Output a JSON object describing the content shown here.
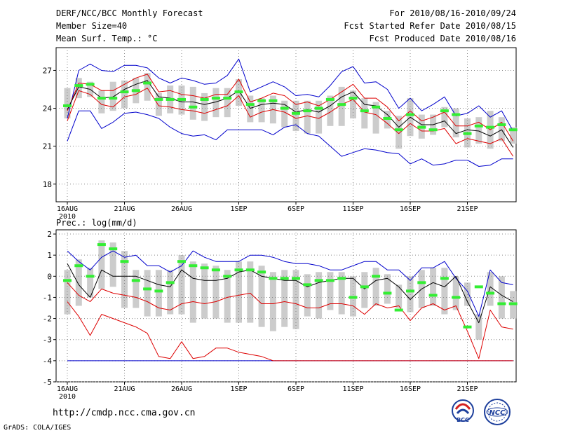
{
  "header": {
    "title": "DERF/NCC/BCC Monthly Forecast",
    "member_size": "Member Size=40",
    "variable": "Mean Surf. Temp.: °C",
    "for_period": "For 2010/08/16-2010/09/24",
    "fcst_started": "Fcst Started Refer Date 2010/08/15",
    "fcst_produced": "Fcst Produced Date 2010/08/16"
  },
  "footer": {
    "url": "http://cmdp.ncc.cma.gov.cn",
    "grads": "GrADS: COLA/IGES",
    "logo1_text": "BCC",
    "logo2_text": "NCC"
  },
  "colors": {
    "envelope": "#0000cc",
    "spread": "#dd0000",
    "mean": "#000000",
    "median": "#33ee33",
    "box": "#cccccc",
    "grid": "#888888"
  },
  "chart_data": [
    {
      "type": "box-ensemble",
      "title": "Mean Surf. Temp.: °C",
      "ylim": [
        16.6,
        28.8
      ],
      "yticks": [
        18,
        21,
        24,
        27
      ],
      "xtick_labels": [
        "16AUG",
        "21AUG",
        "26AUG",
        "1SEP",
        "6SEP",
        "11SEP",
        "16SEP",
        "21SEP"
      ],
      "xtick_sublabel": "2010",
      "xtick_days": [
        0,
        5,
        10,
        15,
        20,
        25,
        30,
        35
      ],
      "days": 40,
      "series": [
        {
          "name": "max",
          "values": [
            21.4,
            23.8,
            23.8,
            22.4,
            22.9,
            23.6,
            23.7,
            23.5,
            23.2,
            22.5,
            22.0,
            21.8,
            21.9,
            21.5,
            22.3,
            22.3,
            22.3,
            22.3,
            21.9,
            22.5,
            22.7,
            22.0,
            21.8,
            21.0,
            20.2,
            20.5,
            20.8,
            20.7,
            20.5,
            20.4,
            19.6,
            20.0,
            19.5,
            19.6,
            19.9,
            19.9,
            19.4,
            19.5,
            20.0,
            20.0
          ]
        },
        {
          "name": "min",
          "values": [
            23.2,
            27.0,
            27.5,
            27.0,
            26.9,
            27.4,
            27.4,
            27.2,
            26.4,
            26.0,
            26.4,
            26.2,
            25.9,
            26.0,
            26.6,
            27.9,
            25.3,
            25.7,
            26.1,
            25.7,
            25.0,
            25.1,
            24.9,
            25.8,
            26.9,
            27.3,
            26.0,
            26.1,
            25.5,
            24.0,
            24.8,
            23.8,
            24.3,
            24.9,
            23.4,
            23.6,
            24.2,
            23.3,
            23.8,
            22.2
          ]
        },
        {
          "name": "upper",
          "values": [
            23.8,
            26.0,
            25.9,
            25.4,
            25.4,
            25.9,
            26.4,
            26.7,
            25.3,
            25.4,
            25.1,
            25.0,
            24.8,
            25.1,
            25.1,
            26.3,
            24.5,
            24.8,
            25.2,
            25.0,
            24.3,
            24.5,
            24.2,
            24.7,
            25.3,
            25.9,
            24.8,
            24.8,
            24.1,
            23.0,
            23.8,
            23.0,
            23.3,
            23.7,
            22.6,
            22.6,
            22.9,
            22.3,
            22.9,
            21.4
          ]
        },
        {
          "name": "lower",
          "values": [
            23.0,
            25.4,
            25.1,
            24.3,
            24.1,
            24.9,
            25.1,
            25.6,
            24.2,
            24.1,
            23.9,
            23.8,
            23.6,
            23.9,
            24.2,
            25.0,
            23.3,
            23.7,
            23.9,
            23.7,
            23.2,
            23.4,
            23.2,
            23.7,
            24.3,
            24.7,
            23.7,
            23.5,
            22.8,
            22.0,
            22.8,
            22.2,
            22.2,
            22.4,
            21.2,
            21.6,
            21.4,
            21.2,
            21.6,
            20.2
          ]
        },
        {
          "name": "mean",
          "values": [
            23.9,
            25.7,
            25.5,
            24.8,
            24.9,
            25.5,
            25.9,
            26.2,
            24.9,
            24.8,
            24.5,
            24.5,
            24.3,
            24.5,
            24.8,
            25.4,
            24.0,
            24.3,
            24.4,
            24.3,
            23.7,
            23.9,
            23.7,
            24.2,
            24.9,
            25.3,
            24.3,
            24.2,
            23.5,
            22.5,
            23.3,
            22.7,
            22.7,
            23.0,
            22.0,
            22.3,
            22.2,
            21.8,
            22.3,
            20.9
          ]
        },
        {
          "name": "median",
          "values": [
            24.2,
            25.8,
            25.9,
            24.8,
            24.8,
            25.3,
            25.4,
            26.0,
            24.7,
            24.7,
            24.7,
            24.1,
            24.7,
            24.8,
            24.8,
            25.3,
            24.3,
            24.6,
            24.6,
            24.0,
            23.6,
            23.8,
            24.0,
            24.7,
            24.3,
            24.8,
            23.8,
            24.1,
            23.2,
            22.3,
            23.5,
            22.5,
            22.3,
            23.8,
            23.5,
            22.0,
            22.6,
            22.5,
            22.7,
            22.3
          ]
        },
        {
          "name": "box_low",
          "values": [
            23.2,
            24.8,
            24.9,
            23.6,
            23.8,
            24.0,
            24.4,
            24.6,
            23.4,
            23.6,
            23.5,
            23.1,
            23.0,
            23.3,
            23.3,
            24.2,
            22.9,
            22.9,
            22.8,
            22.5,
            22.2,
            22.0,
            22.0,
            22.6,
            22.6,
            23.2,
            22.4,
            22.0,
            22.4,
            20.8,
            21.8,
            21.6,
            21.9,
            22.5,
            21.7,
            20.9,
            21.2,
            20.8,
            21.4,
            21.2
          ]
        },
        {
          "name": "box_high",
          "values": [
            25.6,
            26.4,
            26.1,
            25.4,
            26.1,
            26.2,
            26.4,
            26.8,
            25.2,
            25.8,
            25.8,
            25.7,
            25.2,
            25.6,
            25.6,
            26.3,
            25.0,
            24.8,
            25.0,
            24.6,
            24.6,
            24.6,
            24.6,
            25.0,
            25.7,
            25.4,
            24.8,
            24.5,
            23.8,
            23.4,
            24.8,
            23.5,
            23.5,
            24.1,
            24.0,
            23.2,
            23.3,
            23.8,
            23.3,
            22.5
          ]
        }
      ]
    },
    {
      "type": "box-ensemble",
      "title": "Prec.: log(mm/d)",
      "ylim": [
        -5,
        2.2
      ],
      "yticks": [
        -5,
        -4,
        -3,
        -2,
        -1,
        0,
        1,
        2
      ],
      "xtick_labels": [
        "16AUG",
        "21AUG",
        "26AUG",
        "1SEP",
        "6SEP",
        "11SEP",
        "16SEP",
        "21SEP"
      ],
      "xtick_sublabel": "2010",
      "xtick_days": [
        0,
        5,
        10,
        15,
        20,
        25,
        30,
        35
      ],
      "days": 40,
      "series": [
        {
          "name": "max",
          "values": [
            1.2,
            0.7,
            0.3,
            0.9,
            1.2,
            0.9,
            1.0,
            0.5,
            0.5,
            0.2,
            0.5,
            1.2,
            0.9,
            0.7,
            0.7,
            0.7,
            1.0,
            1.0,
            0.9,
            0.7,
            0.6,
            0.6,
            0.5,
            0.3,
            0.3,
            0.5,
            0.7,
            0.7,
            0.3,
            0.3,
            -0.2,
            0.4,
            0.4,
            0.7,
            -0.1,
            -0.7,
            -1.9,
            0.3,
            -0.3,
            -0.4
          ]
        },
        {
          "name": "min",
          "values": [
            -4,
            -4,
            -4,
            -4,
            -4,
            -4,
            -4,
            -4,
            -4,
            -4,
            -4,
            -4,
            -4,
            -4,
            -4,
            -4,
            -4,
            -4,
            -4,
            -4,
            -4,
            -4,
            -4,
            -4,
            -4,
            -4,
            -4,
            -4,
            -4,
            -4,
            -4,
            -4,
            -4,
            -4,
            -4,
            -4,
            -4,
            -4,
            -4,
            -4
          ]
        },
        {
          "name": "upper",
          "values": [
            -1.2,
            -1.9,
            -2.8,
            -1.8,
            -2.0,
            -2.2,
            -2.4,
            -2.7,
            -3.8,
            -3.9,
            -3.1,
            -3.9,
            -3.8,
            -3.4,
            -3.4,
            -3.6,
            -3.7,
            -3.8,
            -4.0,
            -4.0,
            -4.0,
            -4.0,
            -4.0,
            -4.0,
            -4.0,
            -4.0,
            -4.0,
            -4.0,
            -4.0,
            -4.0,
            -4.0,
            -4.0,
            -4.0,
            -4.0,
            -4.0,
            -4.0,
            -4.0,
            -4.0,
            -4.0,
            -4.0
          ]
        },
        {
          "name": "lower",
          "values": [
            -0.3,
            -0.9,
            -1.2,
            -0.6,
            -0.8,
            -0.9,
            -1.0,
            -1.2,
            -1.5,
            -1.6,
            -1.3,
            -1.2,
            -1.3,
            -1.2,
            -1.0,
            -0.9,
            -0.8,
            -1.3,
            -1.3,
            -1.2,
            -1.3,
            -1.5,
            -1.5,
            -1.3,
            -1.3,
            -1.4,
            -1.8,
            -1.3,
            -1.5,
            -1.4,
            -2.1,
            -1.5,
            -1.3,
            -1.6,
            -1.4,
            -2.6,
            -3.9,
            -1.6,
            -2.4,
            -2.5
          ]
        },
        {
          "name": "mean",
          "values": [
            0.6,
            -0.4,
            -1.0,
            0.3,
            0.0,
            0.0,
            0.0,
            -0.2,
            -0.4,
            -0.5,
            0.3,
            -0.1,
            -0.2,
            -0.2,
            -0.1,
            0.2,
            0.3,
            0.0,
            -0.1,
            -0.2,
            -0.2,
            -0.5,
            -0.3,
            -0.2,
            -0.1,
            -0.1,
            -0.6,
            -0.2,
            -0.1,
            -0.5,
            -1.1,
            -0.6,
            -0.3,
            -0.5,
            0.0,
            -1.2,
            -2.2,
            -0.5,
            -0.9,
            -1.2
          ]
        },
        {
          "name": "median",
          "values": [
            -0.2,
            0.5,
            0.0,
            1.5,
            1.3,
            0.7,
            -0.2,
            -0.6,
            -0.7,
            -0.3,
            0.7,
            0.5,
            0.4,
            0.3,
            0.0,
            0.3,
            0.3,
            0.2,
            -0.1,
            -0.1,
            -0.1,
            -0.4,
            -0.2,
            -0.2,
            -0.1,
            -1.0,
            -0.5,
            0.0,
            -0.8,
            -1.6,
            -0.7,
            -0.3,
            -0.9,
            -0.1,
            -1.0,
            -2.4,
            -0.5,
            -0.8,
            -1.3,
            -1.3
          ]
        },
        {
          "name": "box_low",
          "values": [
            -1.8,
            -1.4,
            -1.0,
            -0.6,
            -0.5,
            -1.5,
            -1.5,
            -1.9,
            -1.9,
            -1.8,
            -1.8,
            -2.2,
            -2.0,
            -2.0,
            -2.2,
            -2.2,
            -2.2,
            -2.4,
            -2.6,
            -2.4,
            -2.5,
            -1.9,
            -2.0,
            -1.6,
            -1.8,
            -1.9,
            -1.5,
            -1.4,
            -1.3,
            -1.5,
            -1.7,
            -1.5,
            -1.4,
            -1.8,
            -1.6,
            -1.4,
            -3.0,
            -1.4,
            -2.0,
            -2.0
          ]
        },
        {
          "name": "box_high",
          "values": [
            0.3,
            0.8,
            0.4,
            1.7,
            1.6,
            1.2,
            0.3,
            0.3,
            0.3,
            0.3,
            1.0,
            0.7,
            0.6,
            0.5,
            0.3,
            0.7,
            0.7,
            0.5,
            0.2,
            0.3,
            0.3,
            0.1,
            0.2,
            0.2,
            0.2,
            0.0,
            0.2,
            0.4,
            0.1,
            -0.4,
            0.0,
            0.3,
            0.4,
            0.4,
            0.0,
            -0.3,
            -1.8,
            0.2,
            0.0,
            -0.7
          ]
        }
      ]
    }
  ]
}
